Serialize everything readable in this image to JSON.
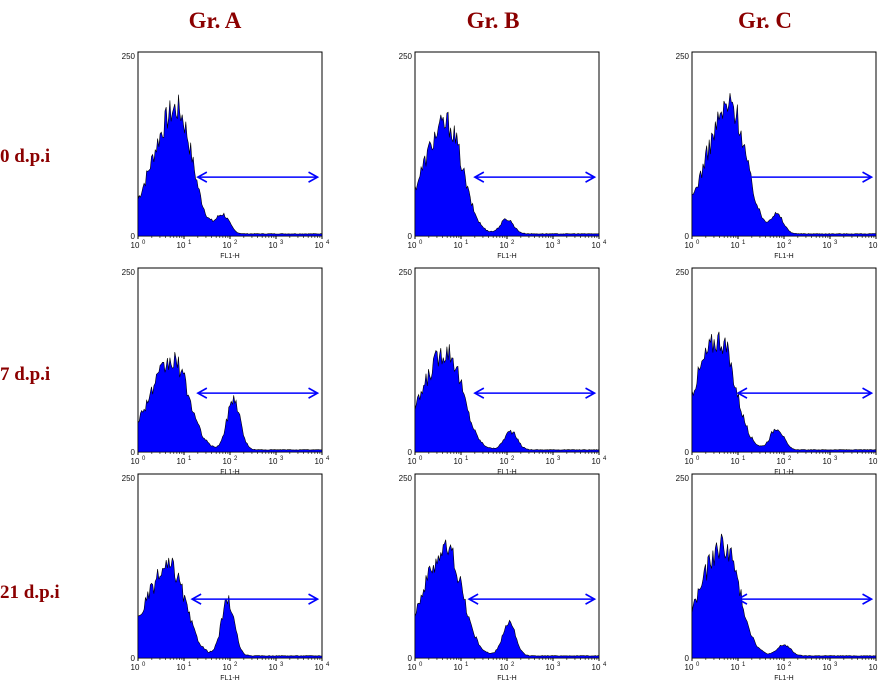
{
  "columns": [
    "Gr. A",
    "Gr. B",
    "Gr. C"
  ],
  "rows": [
    "0 d.p.i",
    "7 d.p.i",
    "21 d.p.i"
  ],
  "colors": {
    "title": "#8b0000",
    "fill": "#0000ff",
    "arrow": "#0000ff"
  },
  "chart_data": {
    "type": "histogram",
    "x_axis_label": "FL1-H",
    "x_scale": "log",
    "xlim": [
      1,
      10000
    ],
    "x_ticks": [
      "10^0",
      "10^1",
      "10^2",
      "10^3",
      "10^4"
    ],
    "ylim": [
      0,
      250
    ],
    "y_ticks": [
      "0",
      "250"
    ],
    "panels": [
      {
        "group": "Gr. A",
        "time": "0 d.p.i",
        "peaks": [
          {
            "x": 7,
            "height": 170
          },
          {
            "x": 70,
            "height": 25
          }
        ],
        "gate_range": [
          20,
          8000
        ]
      },
      {
        "group": "Gr. B",
        "time": "0 d.p.i",
        "peaks": [
          {
            "x": 5,
            "height": 150
          },
          {
            "x": 100,
            "height": 20
          }
        ],
        "gate_range": [
          20,
          8000
        ]
      },
      {
        "group": "Gr. C",
        "time": "0 d.p.i",
        "peaks": [
          {
            "x": 7,
            "height": 175
          },
          {
            "x": 70,
            "height": 25
          }
        ],
        "gate_range": [
          10,
          8000
        ]
      },
      {
        "group": "Gr. A",
        "time": "7 d.p.i",
        "peaks": [
          {
            "x": 6,
            "height": 120
          },
          {
            "x": 120,
            "height": 70
          }
        ],
        "gate_range": [
          20,
          8000
        ]
      },
      {
        "group": "Gr. B",
        "time": "7 d.p.i",
        "peaks": [
          {
            "x": 5,
            "height": 135
          },
          {
            "x": 120,
            "height": 25
          }
        ],
        "gate_range": [
          20,
          8000
        ]
      },
      {
        "group": "Gr. C",
        "time": "7 d.p.i",
        "peaks": [
          {
            "x": 4,
            "height": 150
          },
          {
            "x": 70,
            "height": 30
          }
        ],
        "gate_range": [
          10,
          8000
        ]
      },
      {
        "group": "Gr. A",
        "time": "21 d.p.i",
        "peaks": [
          {
            "x": 5,
            "height": 120
          },
          {
            "x": 90,
            "height": 75
          }
        ],
        "gate_range": [
          15,
          8000
        ]
      },
      {
        "group": "Gr. B",
        "time": "21 d.p.i",
        "peaks": [
          {
            "x": 5,
            "height": 145
          },
          {
            "x": 110,
            "height": 45
          }
        ],
        "gate_range": [
          15,
          8000
        ]
      },
      {
        "group": "Gr. C",
        "time": "21 d.p.i",
        "peaks": [
          {
            "x": 5,
            "height": 150
          },
          {
            "x": 100,
            "height": 15
          }
        ],
        "gate_range": [
          10,
          8000
        ]
      }
    ]
  }
}
